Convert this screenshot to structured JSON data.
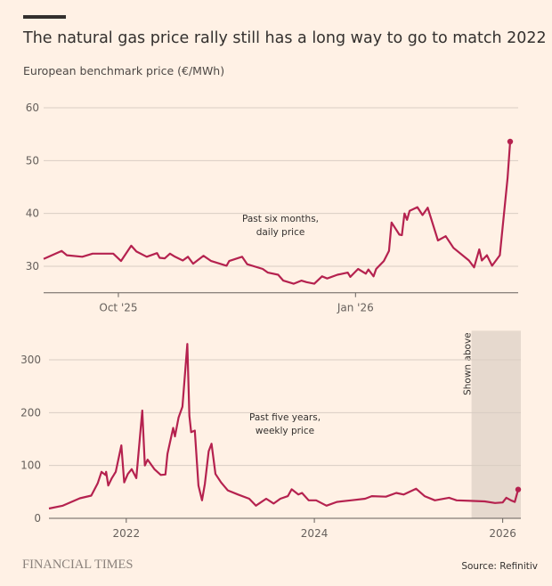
{
  "header": {
    "title": "The natural gas price rally still has a long way to go to match 2022",
    "subtitle": "European benchmark price (€/MWh)"
  },
  "footer": {
    "brand": "FINANCIAL TIMES",
    "source": "Source: Refinitiv"
  },
  "colors": {
    "line": "#b5224f",
    "background": "#fff1e5",
    "grid": "#d9cdc3",
    "shade": "#e6d9ce",
    "text": "#33302e"
  },
  "chart_data": [
    {
      "type": "line",
      "annotation": [
        "Past six months,",
        "daily price"
      ],
      "xlim": [
        "2025-09-02",
        "2026-03-02"
      ],
      "ylim": [
        25,
        60
      ],
      "yticks": [
        30,
        40,
        50,
        60
      ],
      "xticks": [
        {
          "date": "2025-10-01",
          "label": "Oct '25"
        },
        {
          "date": "2026-01-01",
          "label": "Jan '26"
        }
      ],
      "grid": true,
      "end_marker": true,
      "points": [
        [
          "2025-09-02",
          31.4
        ],
        [
          "2025-09-09",
          32.9
        ],
        [
          "2025-09-11",
          32.1
        ],
        [
          "2025-09-17",
          31.8
        ],
        [
          "2025-09-21",
          32.4
        ],
        [
          "2025-09-25",
          32.4
        ],
        [
          "2025-09-29",
          32.4
        ],
        [
          "2025-10-02",
          31.0
        ],
        [
          "2025-10-06",
          33.9
        ],
        [
          "2025-10-08",
          32.8
        ],
        [
          "2025-10-12",
          31.8
        ],
        [
          "2025-10-16",
          32.5
        ],
        [
          "2025-10-17",
          31.6
        ],
        [
          "2025-10-19",
          31.5
        ],
        [
          "2025-10-21",
          32.4
        ],
        [
          "2025-10-23",
          31.8
        ],
        [
          "2025-10-26",
          31.1
        ],
        [
          "2025-10-28",
          31.8
        ],
        [
          "2025-10-30",
          30.5
        ],
        [
          "2025-11-03",
          32.0
        ],
        [
          "2025-11-06",
          31.0
        ],
        [
          "2025-11-12",
          30.1
        ],
        [
          "2025-11-13",
          31.0
        ],
        [
          "2025-11-18",
          31.8
        ],
        [
          "2025-11-20",
          30.4
        ],
        [
          "2025-11-26",
          29.5
        ],
        [
          "2025-11-28",
          28.8
        ],
        [
          "2025-12-02",
          28.4
        ],
        [
          "2025-12-04",
          27.3
        ],
        [
          "2025-12-08",
          26.7
        ],
        [
          "2025-12-11",
          27.3
        ],
        [
          "2025-12-13",
          27.0
        ],
        [
          "2025-12-16",
          26.7
        ],
        [
          "2025-12-19",
          28.1
        ],
        [
          "2025-12-21",
          27.7
        ],
        [
          "2025-12-25",
          28.4
        ],
        [
          "2025-12-29",
          28.8
        ],
        [
          "2025-12-30",
          28.0
        ],
        [
          "2026-01-02",
          29.5
        ],
        [
          "2026-01-05",
          28.6
        ],
        [
          "2026-01-06",
          29.4
        ],
        [
          "2026-01-08",
          28.1
        ],
        [
          "2026-01-09",
          29.5
        ],
        [
          "2026-01-12",
          31.0
        ],
        [
          "2026-01-14",
          32.9
        ],
        [
          "2026-01-15",
          38.3
        ],
        [
          "2026-01-18",
          36.0
        ],
        [
          "2026-01-19",
          35.9
        ],
        [
          "2026-01-20",
          40.0
        ],
        [
          "2026-01-21",
          38.8
        ],
        [
          "2026-01-22",
          40.5
        ],
        [
          "2026-01-25",
          41.2
        ],
        [
          "2026-01-27",
          39.7
        ],
        [
          "2026-01-29",
          41.1
        ],
        [
          "2026-02-02",
          34.9
        ],
        [
          "2026-02-05",
          35.7
        ],
        [
          "2026-02-08",
          33.5
        ],
        [
          "2026-02-14",
          31.1
        ],
        [
          "2026-02-16",
          29.8
        ],
        [
          "2026-02-18",
          33.2
        ],
        [
          "2026-02-19",
          31.1
        ],
        [
          "2026-02-21",
          32.1
        ],
        [
          "2026-02-23",
          30.1
        ],
        [
          "2026-02-26",
          32.1
        ],
        [
          "2026-03-01",
          46.7
        ],
        [
          "2026-03-02",
          53.6
        ]
      ]
    },
    {
      "type": "line",
      "annotation": [
        "Past five years,",
        "weekly price"
      ],
      "shaded_label": "Shown above",
      "shaded_range": [
        "2025-09-02",
        "2026-03-02"
      ],
      "xlim": [
        "2021-03-07",
        "2026-03-02"
      ],
      "ylim": [
        0,
        355
      ],
      "yticks": [
        0,
        100,
        200,
        300
      ],
      "xticks": [
        {
          "date": "2022-01-01",
          "label": "2022"
        },
        {
          "date": "2024-01-01",
          "label": "2024"
        },
        {
          "date": "2026-01-01",
          "label": "2026"
        }
      ],
      "grid": true,
      "end_marker": true,
      "points": [
        [
          "2021-03-07",
          18.6
        ],
        [
          "2021-04-30",
          24
        ],
        [
          "2021-07-05",
          38
        ],
        [
          "2021-08-18",
          43
        ],
        [
          "2021-09-12",
          66
        ],
        [
          "2021-09-27",
          88
        ],
        [
          "2021-10-12",
          82
        ],
        [
          "2021-10-15",
          88
        ],
        [
          "2021-10-23",
          62
        ],
        [
          "2021-11-06",
          76
        ],
        [
          "2021-11-21",
          88
        ],
        [
          "2021-12-13",
          138
        ],
        [
          "2021-12-24",
          68
        ],
        [
          "2022-01-07",
          84
        ],
        [
          "2022-01-22",
          93
        ],
        [
          "2022-02-09",
          76
        ],
        [
          "2022-03-04",
          204
        ],
        [
          "2022-03-14",
          100
        ],
        [
          "2022-03-25",
          111
        ],
        [
          "2022-04-20",
          93
        ],
        [
          "2022-05-15",
          82
        ],
        [
          "2022-06-02",
          83
        ],
        [
          "2022-06-10",
          122
        ],
        [
          "2022-07-02",
          171
        ],
        [
          "2022-07-09",
          155
        ],
        [
          "2022-07-23",
          191
        ],
        [
          "2022-08-07",
          211
        ],
        [
          "2022-08-26",
          330
        ],
        [
          "2022-09-03",
          194
        ],
        [
          "2022-09-10",
          163
        ],
        [
          "2022-09-24",
          166
        ],
        [
          "2022-10-08",
          62
        ],
        [
          "2022-10-22",
          34
        ],
        [
          "2022-11-02",
          65
        ],
        [
          "2022-11-17",
          127
        ],
        [
          "2022-11-28",
          141
        ],
        [
          "2022-12-13",
          84
        ],
        [
          "2023-01-04",
          68
        ],
        [
          "2023-01-30",
          53
        ],
        [
          "2023-03-11",
          45
        ],
        [
          "2023-04-23",
          37
        ],
        [
          "2023-05-19",
          24
        ],
        [
          "2023-06-28",
          37
        ],
        [
          "2023-07-27",
          28
        ],
        [
          "2023-08-22",
          37
        ],
        [
          "2023-09-20",
          42
        ],
        [
          "2023-10-05",
          55
        ],
        [
          "2023-10-31",
          45
        ],
        [
          "2023-11-14",
          48
        ],
        [
          "2023-12-10",
          34
        ],
        [
          "2024-01-08",
          34
        ],
        [
          "2024-02-17",
          24
        ],
        [
          "2024-03-28",
          31
        ],
        [
          "2024-05-22",
          34
        ],
        [
          "2024-07-16",
          37
        ],
        [
          "2024-08-11",
          42
        ],
        [
          "2024-10-05",
          41
        ],
        [
          "2024-11-14",
          48
        ],
        [
          "2024-12-13",
          45
        ],
        [
          "2025-01-30",
          56
        ],
        [
          "2025-03-04",
          42
        ],
        [
          "2025-04-13",
          34
        ],
        [
          "2025-06-07",
          39
        ],
        [
          "2025-07-06",
          34
        ],
        [
          "2025-08-29",
          33
        ],
        [
          "2025-10-23",
          32
        ],
        [
          "2025-12-02",
          29
        ],
        [
          "2026-01-01",
          30
        ],
        [
          "2026-01-15",
          39
        ],
        [
          "2026-02-02",
          34
        ],
        [
          "2026-02-17",
          31
        ],
        [
          "2026-03-02",
          54.5
        ]
      ]
    }
  ]
}
